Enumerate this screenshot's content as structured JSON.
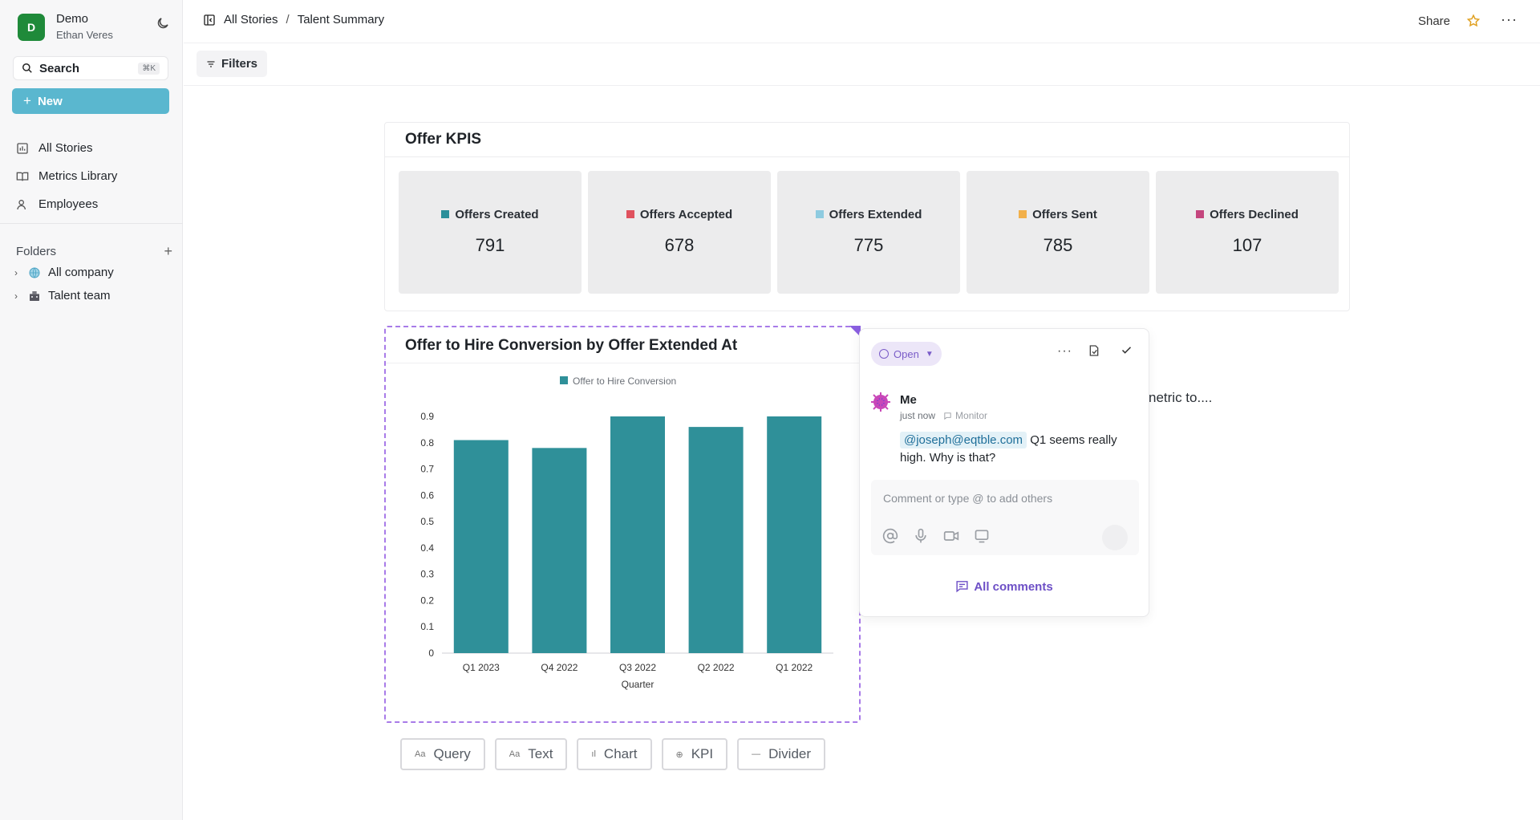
{
  "workspace": {
    "initial": "D",
    "name": "Demo",
    "user": "Ethan Veres"
  },
  "search": {
    "label": "Search",
    "shortcut": "⌘K"
  },
  "new_button": {
    "label": "New"
  },
  "nav": [
    {
      "label": "All Stories",
      "icon": "bar-chart-icon"
    },
    {
      "label": "Metrics Library",
      "icon": "book-icon"
    },
    {
      "label": "Employees",
      "icon": "user-icon"
    }
  ],
  "folders": {
    "heading": "Folders",
    "items": [
      {
        "label": "All company",
        "icon": "globe-icon"
      },
      {
        "label": "Talent team",
        "icon": "team-icon"
      }
    ]
  },
  "breadcrumb": {
    "root": "All Stories",
    "current": "Talent Summary"
  },
  "topbar": {
    "share": "Share"
  },
  "filters": {
    "label": "Filters"
  },
  "kpi_card": {
    "title": "Offer KPIS",
    "tiles": [
      {
        "label": "Offers Created",
        "value": "791",
        "color": "#2a8f9a"
      },
      {
        "label": "Offers Accepted",
        "value": "678",
        "color": "#e0525e"
      },
      {
        "label": "Offers Extended",
        "value": "775",
        "color": "#8ecbe0"
      },
      {
        "label": "Offers Sent",
        "value": "785",
        "color": "#f2b04a"
      },
      {
        "label": "Offers Declined",
        "value": "107",
        "color": "#c4467e"
      }
    ]
  },
  "chart_card": {
    "title": "Offer to Hire Conversion by Offer Extended At"
  },
  "chart_data": {
    "type": "bar",
    "categories": [
      "Q1 2023",
      "Q4 2022",
      "Q3 2022",
      "Q2 2022",
      "Q1 2022"
    ],
    "series": [
      {
        "name": "Offer to Hire Conversion",
        "values": [
          0.81,
          0.78,
          0.9,
          0.86,
          0.9
        ],
        "color": "#2f9099"
      }
    ],
    "xlabel": "Quarter",
    "ylabel": "",
    "ylim": [
      0,
      0.9
    ],
    "yticks": [
      "0",
      "0.1",
      "0.2",
      "0.3",
      "0.4",
      "0.5",
      "0.6",
      "0.7",
      "0.8",
      "0.9"
    ],
    "legend": "top-center",
    "grid": false
  },
  "comment": {
    "status": "Open",
    "author": "Me",
    "time": "just now",
    "tag": "Monitor",
    "mention": "@joseph@eqtble.com",
    "text": " Q1 seems really high. Why is that?",
    "input_placeholder": "Comment or type @ to add others",
    "all_comments": "All comments"
  },
  "trailing_text": "netric to....",
  "blocks": [
    {
      "icon": "Aa",
      "label": "Query"
    },
    {
      "icon": "Aa",
      "label": "Text"
    },
    {
      "icon": "ıl",
      "label": "Chart"
    },
    {
      "icon": "⊕",
      "label": "KPI"
    },
    {
      "icon": "—",
      "label": "Divider"
    }
  ]
}
